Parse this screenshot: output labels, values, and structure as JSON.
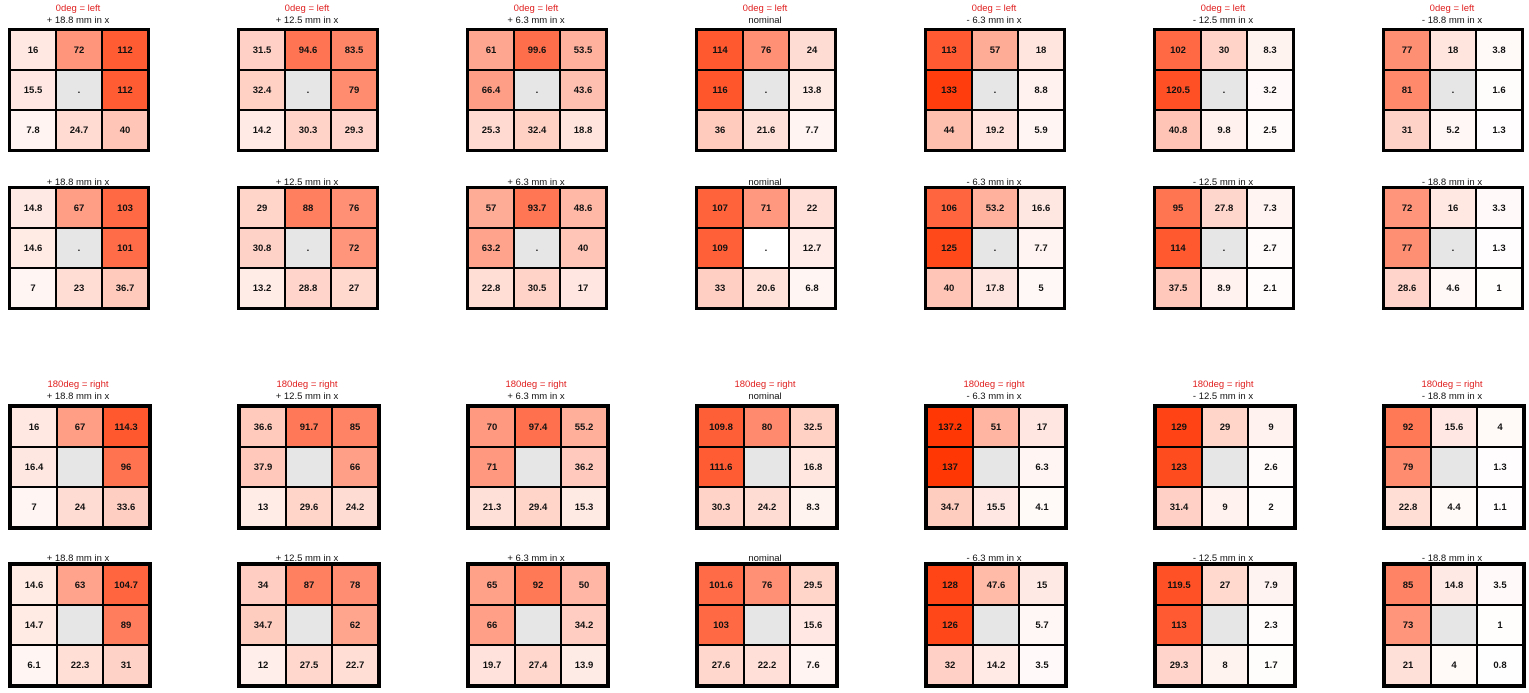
{
  "colors": {
    "low": "#ffffff",
    "high": "#ff3300",
    "center_fill": "#e6e6e6",
    "red_label": "#e02020"
  },
  "groups": [
    {
      "title": "0deg = left",
      "panels": [
        {
          "label": "+ 18.8 mm in x",
          "cells": [
            [
              "16",
              "72",
              "112"
            ],
            [
              "15.5",
              ".",
              "112"
            ],
            [
              "7.8",
              "24.7",
              "40"
            ]
          ]
        },
        {
          "label": "+ 12.5 mm in x",
          "cells": [
            [
              "31.5",
              "94.6",
              "83.5"
            ],
            [
              "32.4",
              ".",
              "79"
            ],
            [
              "14.2",
              "30.3",
              "29.3"
            ]
          ]
        },
        {
          "label": "+ 6.3 mm in x",
          "cells": [
            [
              "61",
              "99.6",
              "53.5"
            ],
            [
              "66.4",
              ".",
              "43.6"
            ],
            [
              "25.3",
              "32.4",
              "18.8"
            ]
          ]
        },
        {
          "label": "nominal",
          "cells": [
            [
              "114",
              "76",
              "24"
            ],
            [
              "116",
              ".",
              "13.8"
            ],
            [
              "36",
              "21.6",
              "7.7"
            ]
          ]
        },
        {
          "label": "- 6.3 mm in x",
          "cells": [
            [
              "113",
              "57",
              "18"
            ],
            [
              "133",
              ".",
              "8.8"
            ],
            [
              "44",
              "19.2",
              "5.9"
            ]
          ]
        },
        {
          "label": "- 12.5 mm in x",
          "cells": [
            [
              "102",
              "30",
              "8.3"
            ],
            [
              "120.5",
              ".",
              "3.2"
            ],
            [
              "40.8",
              "9.8",
              "2.5"
            ]
          ]
        },
        {
          "label": "- 18.8 mm in x",
          "cells": [
            [
              "77",
              "18",
              "3.8"
            ],
            [
              "81",
              ".",
              "1.6"
            ],
            [
              "31",
              "5.2",
              "1.3"
            ]
          ]
        }
      ]
    },
    {
      "title": "",
      "panels": [
        {
          "label": "+ 18.8 mm in x",
          "cells": [
            [
              "14.8",
              "67",
              "103"
            ],
            [
              "14.6",
              ".",
              "101"
            ],
            [
              "7",
              "23",
              "36.7"
            ]
          ]
        },
        {
          "label": "+ 12.5 mm in x",
          "cells": [
            [
              "29",
              "88",
              "76"
            ],
            [
              "30.8",
              ".",
              "72"
            ],
            [
              "13.2",
              "28.8",
              "27"
            ]
          ]
        },
        {
          "label": "+ 6.3 mm in x",
          "cells": [
            [
              "57",
              "93.7",
              "48.6"
            ],
            [
              "63.2",
              ".",
              "40"
            ],
            [
              "22.8",
              "30.5",
              "17"
            ]
          ]
        },
        {
          "label": "nominal",
          "center_white": true,
          "cells": [
            [
              "107",
              "71",
              "22"
            ],
            [
              "109",
              ".",
              "12.7"
            ],
            [
              "33",
              "20.6",
              "6.8"
            ]
          ]
        },
        {
          "label": "- 6.3 mm in x",
          "cells": [
            [
              "106",
              "53.2",
              "16.6"
            ],
            [
              "125",
              ".",
              "7.7"
            ],
            [
              "40",
              "17.8",
              "5"
            ]
          ]
        },
        {
          "label": "- 12.5 mm in x",
          "cells": [
            [
              "95",
              "27.8",
              "7.3"
            ],
            [
              "114",
              ".",
              "2.7"
            ],
            [
              "37.5",
              "8.9",
              "2.1"
            ]
          ]
        },
        {
          "label": "- 18.8 mm in x",
          "cells": [
            [
              "72",
              "16",
              "3.3"
            ],
            [
              "77",
              ".",
              "1.3"
            ],
            [
              "28.6",
              "4.6",
              "1"
            ]
          ]
        }
      ]
    },
    {
      "title": "180deg = right",
      "panels": [
        {
          "label": "+ 18.8 mm in x",
          "cells": [
            [
              "16",
              "67",
              "114.3"
            ],
            [
              "16.4",
              "",
              "96"
            ],
            [
              "7",
              "24",
              "33.6"
            ]
          ]
        },
        {
          "label": "+ 12.5 mm in x",
          "cells": [
            [
              "36.6",
              "91.7",
              "85"
            ],
            [
              "37.9",
              "",
              "66"
            ],
            [
              "13",
              "29.6",
              "24.2"
            ]
          ]
        },
        {
          "label": "+ 6.3 mm in x",
          "cells": [
            [
              "70",
              "97.4",
              "55.2"
            ],
            [
              "71",
              "",
              "36.2"
            ],
            [
              "21.3",
              "29.4",
              "15.3"
            ]
          ]
        },
        {
          "label": "nominal",
          "cells": [
            [
              "109.8",
              "80",
              "32.5"
            ],
            [
              "111.6",
              "",
              "16.8"
            ],
            [
              "30.3",
              "24.2",
              "8.3"
            ]
          ]
        },
        {
          "label": "- 6.3 mm in x",
          "cells": [
            [
              "137.2",
              "51",
              "17"
            ],
            [
              "137",
              "",
              "6.3"
            ],
            [
              "34.7",
              "15.5",
              "4.1"
            ]
          ]
        },
        {
          "label": "- 12.5 mm in x",
          "cells": [
            [
              "129",
              "29",
              "9"
            ],
            [
              "123",
              "",
              "2.6"
            ],
            [
              "31.4",
              "9",
              "2"
            ]
          ]
        },
        {
          "label": "- 18.8 mm in x",
          "cells": [
            [
              "92",
              "15.6",
              "4"
            ],
            [
              "79",
              "",
              "1.3"
            ],
            [
              "22.8",
              "4.4",
              "1.1"
            ]
          ]
        }
      ]
    },
    {
      "title": "",
      "panels": [
        {
          "label": "+ 18.8 mm in x",
          "cells": [
            [
              "14.6",
              "63",
              "104.7"
            ],
            [
              "14.7",
              "",
              "89"
            ],
            [
              "6.1",
              "22.3",
              "31"
            ]
          ]
        },
        {
          "label": "+ 12.5 mm in x",
          "cells": [
            [
              "34",
              "87",
              "78"
            ],
            [
              "34.7",
              "",
              "62"
            ],
            [
              "12",
              "27.5",
              "22.7"
            ]
          ]
        },
        {
          "label": "+ 6.3 mm in x",
          "cells": [
            [
              "65",
              "92",
              "50"
            ],
            [
              "66",
              "",
              "34.2"
            ],
            [
              "19.7",
              "27.4",
              "13.9"
            ]
          ]
        },
        {
          "label": "nominal",
          "cells": [
            [
              "101.6",
              "76",
              "29.5"
            ],
            [
              "103",
              "",
              "15.6"
            ],
            [
              "27.6",
              "22.2",
              "7.6"
            ]
          ]
        },
        {
          "label": "- 6.3 mm in x",
          "cells": [
            [
              "128",
              "47.6",
              "15"
            ],
            [
              "126",
              "",
              "5.7"
            ],
            [
              "32",
              "14.2",
              "3.5"
            ]
          ]
        },
        {
          "label": "- 12.5 mm in x",
          "cells": [
            [
              "119.5",
              "27",
              "7.9"
            ],
            [
              "113",
              "",
              "2.3"
            ],
            [
              "29.3",
              "8",
              "1.7"
            ]
          ]
        },
        {
          "label": "- 18.8 mm in x",
          "cells": [
            [
              "85",
              "14.8",
              "3.5"
            ],
            [
              "73",
              "",
              "1"
            ],
            [
              "21",
              "4",
              "0.8"
            ]
          ]
        }
      ]
    }
  ]
}
